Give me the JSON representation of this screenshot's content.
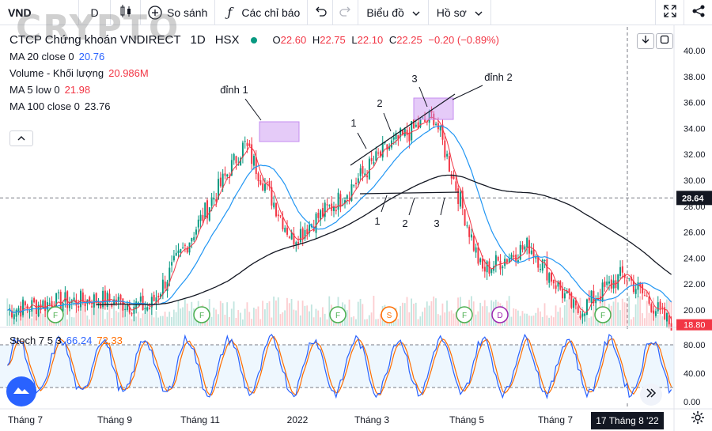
{
  "toolbar": {
    "symbol": "VND",
    "interval": "D",
    "compare_label": "So sánh",
    "indicators_label": "Các chỉ báo",
    "chart_label": "Biểu đồ",
    "profile_label": "Hồ sơ"
  },
  "watermark": "CRYPTO",
  "legend": {
    "title": "CTCP Chứng khoán VNDIRECT",
    "timeframe": "1D",
    "exchange": "HSX",
    "open_label": "O",
    "open": "22.60",
    "high_label": "H",
    "high": "22.75",
    "low_label": "L",
    "low": "22.10",
    "close_label": "C",
    "close": "22.25",
    "change": "−0.20 (−0.89%)",
    "ma20_label": "MA 20 close 0",
    "ma20_value": "20.76",
    "volume_label": "Volume - Khối lượng",
    "volume_value": "20.986M",
    "ma5_label": "MA 5 low 0",
    "ma5_value": "21.98",
    "ma100_label": "MA 100 close 0",
    "ma100_value": "23.76"
  },
  "stoch": {
    "label": "Stoch 7 5 3",
    "k_value": "66.24",
    "d_value": "72.33"
  },
  "colors": {
    "up": "#089981",
    "down": "#f23645",
    "ma20": "#2196f3",
    "ma5": "#f23645",
    "ma100": "#131722",
    "stoch_k": "#2962ff",
    "stoch_d": "#ff6d00",
    "annotation_box": "#c58cf0"
  },
  "chart_data": {
    "type": "candlestick",
    "price_axis": {
      "min": 18,
      "max": 40,
      "ticks": [
        "40.00",
        "38.00",
        "36.00",
        "34.00",
        "32.00",
        "30.00",
        "28.00",
        "26.00",
        "24.00",
        "22.00",
        "20.00"
      ],
      "crosshair_value": "28.64",
      "last_price_label": "18.80"
    },
    "stoch_axis": {
      "ticks": [
        "80.00",
        "40.00",
        "0.00"
      ],
      "bands": [
        80,
        20
      ]
    },
    "time_axis": [
      "Tháng 7",
      "Tháng 9",
      "Tháng 11",
      "2022",
      "Tháng 3",
      "Tháng 5",
      "Tháng 7"
    ],
    "crosshair_date": "17 Tháng 8 '22",
    "annotations": {
      "peak1": "đỉnh 1",
      "peak2": "đỉnh 2",
      "upper_points": [
        "1",
        "2",
        "3"
      ],
      "lower_points": [
        "1",
        "2",
        "3"
      ]
    },
    "event_markers": [
      "F",
      "F",
      "F",
      "S",
      "F",
      "D",
      "F"
    ],
    "close_path": [
      [
        "Tháng 7",
        20.0
      ],
      [
        "Tháng 8",
        20.6
      ],
      [
        "Tháng 9",
        20.8
      ],
      [
        "Tháng 10",
        20.2
      ],
      [
        "Tháng 11",
        26.5
      ],
      [
        "Tháng 12",
        32.8
      ],
      [
        "Tháng 1",
        25.5
      ],
      [
        "Tháng 2",
        28.5
      ],
      [
        "Tháng 3",
        32.5
      ],
      [
        "Tháng 4",
        35.0
      ],
      [
        "Tháng 5",
        23.0
      ],
      [
        "Tháng 6",
        25.0
      ],
      [
        "Tháng 7",
        19.8
      ],
      [
        "Tháng 8",
        22.8
      ],
      [
        "Tháng 9",
        18.8
      ]
    ]
  }
}
